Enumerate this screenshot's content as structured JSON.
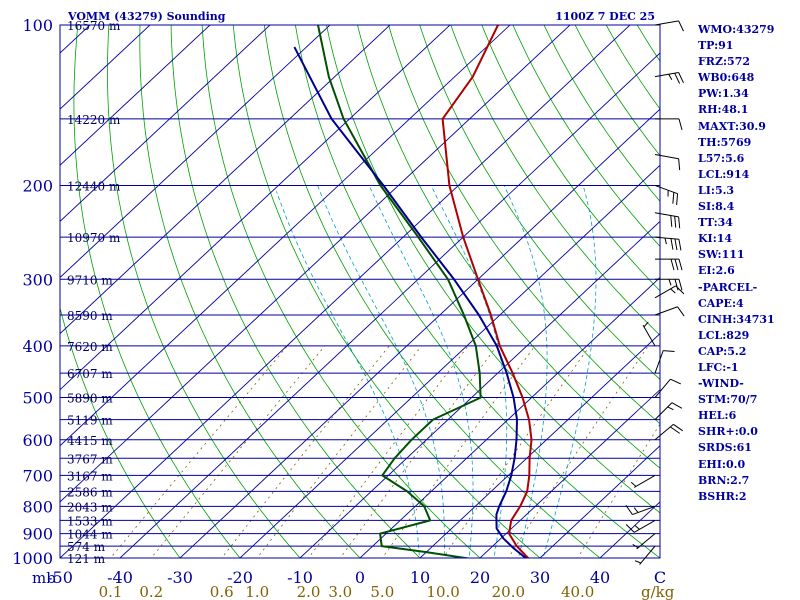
{
  "chart_data": {
    "type": "skew-t sounding",
    "title": "VOMM (43279) Sounding",
    "time_label": "1100Z  7 DEC 25",
    "pressure_axis": {
      "ticks": [
        100,
        200,
        300,
        400,
        500,
        600,
        700,
        800,
        900,
        1000
      ],
      "unit_label": "mb",
      "range_hpa": [
        100,
        1000
      ]
    },
    "temperature_axis": {
      "ticks": [
        -50,
        -40,
        -30,
        -20,
        -10,
        0,
        10,
        20,
        30,
        40,
        50
      ],
      "display": [
        "-50",
        "-40",
        "-30",
        "-20",
        "-10",
        "0",
        "10",
        "20",
        "30",
        "40",
        "C"
      ]
    },
    "mixing_ratio_axis": {
      "unit_label": "g/kg",
      "ticks": [
        {
          "label": "0.1",
          "value": 0.1
        },
        {
          "label": "0.2",
          "value": 0.2
        },
        {
          "label": "0.6",
          "value": 0.6
        },
        {
          "label": "1.0",
          "value": 1.0
        },
        {
          "label": "2.0",
          "value": 2.0
        },
        {
          "label": "3.0",
          "value": 3.0
        },
        {
          "label": "5.0",
          "value": 5.0
        },
        {
          "label": "10.0",
          "value": 10.0
        },
        {
          "label": "20.0",
          "value": 20.0
        },
        {
          "label": "40.0",
          "value": 40.0
        }
      ]
    },
    "height_labels": [
      {
        "p": 100,
        "label": "16570 m"
      },
      {
        "p": 150,
        "label": "14220 m"
      },
      {
        "p": 200,
        "label": "12440 m"
      },
      {
        "p": 250,
        "label": "10970 m"
      },
      {
        "p": 300,
        "label": "9710 m"
      },
      {
        "p": 350,
        "label": "8590 m"
      },
      {
        "p": 400,
        "label": "7620 m"
      },
      {
        "p": 450,
        "label": "6707 m"
      },
      {
        "p": 500,
        "label": "5890 m"
      },
      {
        "p": 550,
        "label": "5119 m"
      },
      {
        "p": 600,
        "label": "4415 m"
      },
      {
        "p": 650,
        "label": "3767 m"
      },
      {
        "p": 700,
        "label": "3167 m"
      },
      {
        "p": 750,
        "label": "2586 m"
      },
      {
        "p": 800,
        "label": "2043 m"
      },
      {
        "p": 850,
        "label": "1533 m"
      },
      {
        "p": 900,
        "label": "1044 m"
      },
      {
        "p": 950,
        "label": "574 m"
      },
      {
        "p": 1000,
        "label": "121 m"
      }
    ],
    "series": [
      {
        "name": "Temperature",
        "color": "#b00000",
        "points": [
          {
            "p": 1010,
            "t": 29.5
          },
          {
            "p": 1000,
            "t": 28.0
          },
          {
            "p": 950,
            "t": 24.0
          },
          {
            "p": 900,
            "t": 20.5
          },
          {
            "p": 850,
            "t": 18.5
          },
          {
            "p": 800,
            "t": 17.5
          },
          {
            "p": 750,
            "t": 16.0
          },
          {
            "p": 700,
            "t": 13.5
          },
          {
            "p": 650,
            "t": 10.5
          },
          {
            "p": 600,
            "t": 7.5
          },
          {
            "p": 550,
            "t": 3.5
          },
          {
            "p": 500,
            "t": -1.5
          },
          {
            "p": 450,
            "t": -7.5
          },
          {
            "p": 400,
            "t": -14.5
          },
          {
            "p": 350,
            "t": -21.5
          },
          {
            "p": 300,
            "t": -30.0
          },
          {
            "p": 250,
            "t": -40.0
          },
          {
            "p": 200,
            "t": -51.5
          },
          {
            "p": 150,
            "t": -64.5
          },
          {
            "p": 125,
            "t": -67.0
          },
          {
            "p": 100,
            "t": -72.0
          }
        ]
      },
      {
        "name": "Dew point",
        "color": "#005000",
        "points": [
          {
            "p": 1010,
            "t": 20.5
          },
          {
            "p": 975,
            "t": 10.0
          },
          {
            "p": 950,
            "t": 1.5
          },
          {
            "p": 900,
            "t": -1.0
          },
          {
            "p": 850,
            "t": 5.0
          },
          {
            "p": 800,
            "t": 1.5
          },
          {
            "p": 750,
            "t": -4.0
          },
          {
            "p": 700,
            "t": -11.0
          },
          {
            "p": 650,
            "t": -12.0
          },
          {
            "p": 600,
            "t": -12.5
          },
          {
            "p": 550,
            "t": -12.5
          },
          {
            "p": 500,
            "t": -8.5
          },
          {
            "p": 450,
            "t": -13.0
          },
          {
            "p": 400,
            "t": -18.5
          },
          {
            "p": 350,
            "t": -26.0
          },
          {
            "p": 300,
            "t": -35.0
          },
          {
            "p": 250,
            "t": -47.5
          },
          {
            "p": 200,
            "t": -63.0
          },
          {
            "p": 150,
            "t": -81.0
          },
          {
            "p": 125,
            "t": -91.0
          },
          {
            "p": 100,
            "t": -102.0
          }
        ]
      },
      {
        "name": "Parcel",
        "color": "#00008b",
        "points": [
          {
            "p": 1010,
            "t": 28.5
          },
          {
            "p": 960,
            "t": 24.0
          },
          {
            "p": 920,
            "t": 20.5
          },
          {
            "p": 880,
            "t": 17.5
          },
          {
            "p": 829,
            "t": 15.0
          },
          {
            "p": 800,
            "t": 14.0
          },
          {
            "p": 750,
            "t": 12.5
          },
          {
            "p": 700,
            "t": 10.5
          },
          {
            "p": 650,
            "t": 8.0
          },
          {
            "p": 600,
            "t": 5.0
          },
          {
            "p": 550,
            "t": 1.5
          },
          {
            "p": 500,
            "t": -3.0
          },
          {
            "p": 450,
            "t": -8.5
          },
          {
            "p": 400,
            "t": -15.0
          },
          {
            "p": 350,
            "t": -23.5
          },
          {
            "p": 300,
            "t": -34.0
          },
          {
            "p": 250,
            "t": -47.0
          },
          {
            "p": 200,
            "t": -62.5
          },
          {
            "p": 150,
            "t": -83.0
          },
          {
            "p": 110,
            "t": -102.0
          }
        ]
      }
    ],
    "wind_barbs": [
      {
        "p": 100,
        "dir": 80,
        "kt": 10
      },
      {
        "p": 125,
        "dir": 80,
        "kt": 25
      },
      {
        "p": 150,
        "dir": 90,
        "kt": 10
      },
      {
        "p": 175,
        "dir": 100,
        "kt": 10
      },
      {
        "p": 200,
        "dir": 110,
        "kt": 25
      },
      {
        "p": 225,
        "dir": 100,
        "kt": 30
      },
      {
        "p": 250,
        "dir": 95,
        "kt": 35
      },
      {
        "p": 275,
        "dir": 90,
        "kt": 30
      },
      {
        "p": 300,
        "dir": 90,
        "kt": 25
      },
      {
        "p": 325,
        "dir": 60,
        "kt": 15
      },
      {
        "p": 350,
        "dir": 70,
        "kt": 10
      },
      {
        "p": 400,
        "dir": 330,
        "kt": 5
      },
      {
        "p": 450,
        "dir": 20,
        "kt": 10
      },
      {
        "p": 500,
        "dir": 40,
        "kt": 10
      },
      {
        "p": 550,
        "dir": 45,
        "kt": 15
      },
      {
        "p": 600,
        "dir": 50,
        "kt": 20
      },
      {
        "p": 700,
        "dir": 240,
        "kt": 5
      },
      {
        "p": 800,
        "dir": 250,
        "kt": 15
      },
      {
        "p": 850,
        "dir": 240,
        "kt": 15
      },
      {
        "p": 900,
        "dir": 230,
        "kt": 5
      },
      {
        "p": 950,
        "dir": 220,
        "kt": 5
      }
    ]
  },
  "indices": [
    "WMO:43279",
    "TP:91",
    "FRZ:572",
    "WB0:648",
    "PW:1.34",
    "RH:48.1",
    "MAXT:30.9",
    "TH:5769",
    "L57:5.6",
    "LCL:914",
    "LI:5.3",
    "SI:8.4",
    "TT:34",
    "KI:14",
    "SW:111",
    "EI:2.6",
    "-PARCEL-",
    "CAPE:4",
    "CINH:34731",
    "LCL:829",
    "CAP:5.2",
    "LFC:-1",
    "-WIND-",
    "STM:70/7",
    "HEL:6",
    "SHR+:0.0",
    "SRDS:61",
    "EHI:0.0",
    "BRN:2.7",
    "BSHR:2"
  ],
  "colors": {
    "isobar": "#0000a0",
    "isotherm": "#0000a0",
    "dry_adiabat": "#00a000",
    "moist_adiabat": "#00a0c0",
    "mixing_ratio": "#806000",
    "axis_text": "#0000a0",
    "mixing_text": "#806000",
    "height_text": "#000060",
    "barb": "#000000"
  }
}
